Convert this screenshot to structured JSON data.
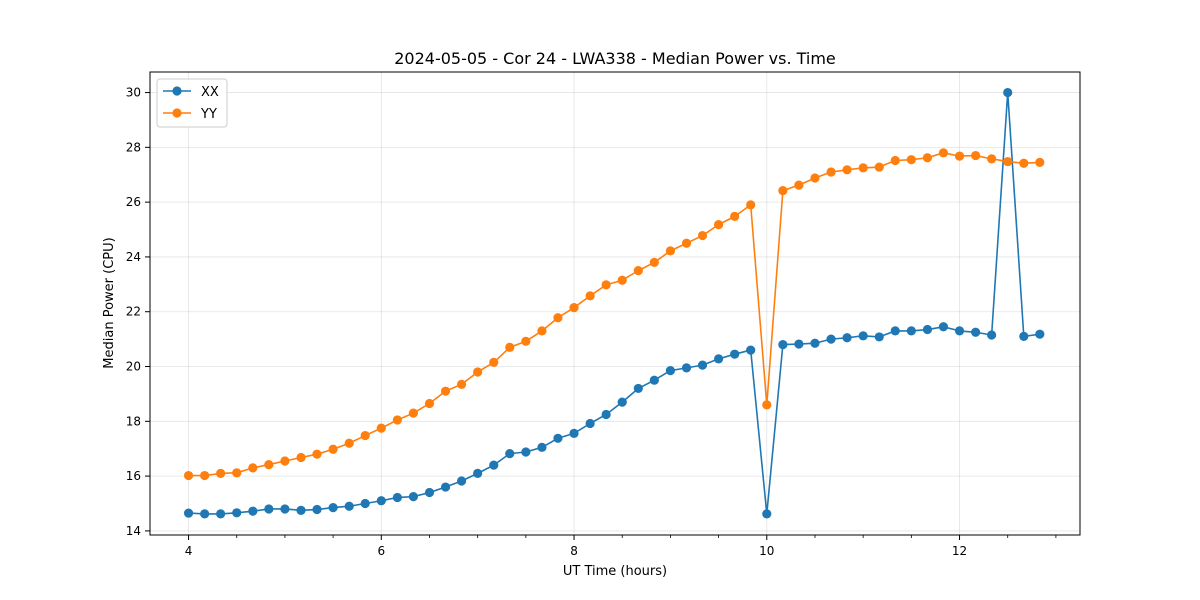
{
  "chart_data": {
    "type": "line",
    "title": "2024-05-05 - Cor 24 - LWA338 - Median Power vs. Time",
    "xlabel": "UT Time (hours)",
    "ylabel": "Median Power (CPU)",
    "xlim": [
      3.6,
      13.25
    ],
    "ylim": [
      13.85,
      30.75
    ],
    "xticks": [
      4,
      6,
      8,
      10,
      12
    ],
    "xtick_labels": [
      "4",
      "6",
      "8",
      "10",
      "12"
    ],
    "x_minor_step": 0.5,
    "yticks": [
      14,
      16,
      18,
      20,
      22,
      24,
      26,
      28,
      30
    ],
    "ytick_labels": [
      "14",
      "16",
      "18",
      "20",
      "22",
      "24",
      "26",
      "28",
      "30"
    ],
    "grid": true,
    "legend_position": "upper-left",
    "x": [
      4.0,
      4.167,
      4.333,
      4.5,
      4.667,
      4.833,
      5.0,
      5.167,
      5.333,
      5.5,
      5.667,
      5.833,
      6.0,
      6.167,
      6.333,
      6.5,
      6.667,
      6.833,
      7.0,
      7.167,
      7.333,
      7.5,
      7.667,
      7.833,
      8.0,
      8.167,
      8.333,
      8.5,
      8.667,
      8.833,
      9.0,
      9.167,
      9.333,
      9.5,
      9.667,
      9.833,
      10.0,
      10.167,
      10.333,
      10.5,
      10.667,
      10.833,
      11.0,
      11.167,
      11.333,
      11.5,
      11.667,
      11.833,
      12.0,
      12.167,
      12.333,
      12.5,
      12.667,
      12.833
    ],
    "series": [
      {
        "name": "XX",
        "color": "#1f77b4",
        "values": [
          14.65,
          14.62,
          14.62,
          14.66,
          14.72,
          14.8,
          14.8,
          14.75,
          14.78,
          14.85,
          14.9,
          15.0,
          15.1,
          15.22,
          15.25,
          15.4,
          15.6,
          15.82,
          16.1,
          16.4,
          16.82,
          16.88,
          17.05,
          17.38,
          17.56,
          17.92,
          18.25,
          18.7,
          19.2,
          19.5,
          19.85,
          19.95,
          20.05,
          20.28,
          20.45,
          20.6,
          14.62,
          20.8,
          20.82,
          20.85,
          21.0,
          21.05,
          21.12,
          21.08,
          21.3,
          21.3,
          21.35,
          21.45,
          21.3,
          21.25,
          21.15,
          30.0,
          21.1,
          21.18
        ]
      },
      {
        "name": "YY",
        "color": "#ff7f0e",
        "values": [
          16.02,
          16.02,
          16.1,
          16.12,
          16.3,
          16.42,
          16.55,
          16.68,
          16.8,
          16.98,
          17.2,
          17.48,
          17.75,
          18.05,
          18.3,
          18.65,
          19.1,
          19.35,
          19.8,
          20.15,
          20.7,
          20.92,
          21.3,
          21.78,
          22.15,
          22.58,
          22.98,
          23.15,
          23.5,
          23.8,
          24.22,
          24.5,
          24.78,
          25.18,
          25.48,
          25.9,
          18.6,
          26.42,
          26.62,
          26.88,
          27.1,
          27.18,
          27.25,
          27.28,
          27.52,
          27.55,
          27.62,
          27.8,
          27.68,
          27.7,
          27.58,
          27.48,
          27.42,
          27.45
        ]
      }
    ]
  }
}
